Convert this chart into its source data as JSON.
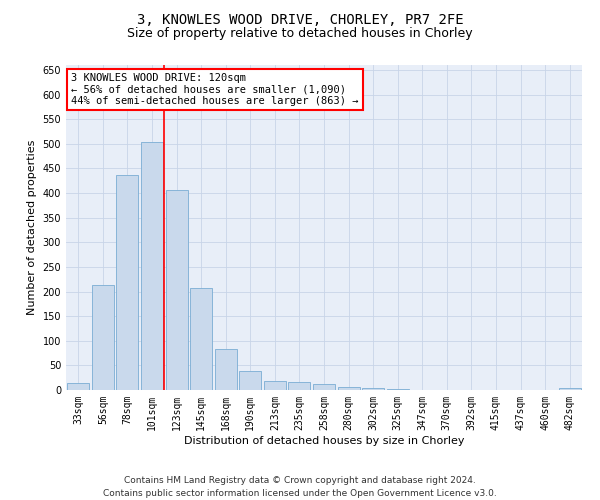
{
  "title": "3, KNOWLES WOOD DRIVE, CHORLEY, PR7 2FE",
  "subtitle": "Size of property relative to detached houses in Chorley",
  "xlabel": "Distribution of detached houses by size in Chorley",
  "ylabel": "Number of detached properties",
  "categories": [
    "33sqm",
    "56sqm",
    "78sqm",
    "101sqm",
    "123sqm",
    "145sqm",
    "168sqm",
    "190sqm",
    "213sqm",
    "235sqm",
    "258sqm",
    "280sqm",
    "302sqm",
    "325sqm",
    "347sqm",
    "370sqm",
    "392sqm",
    "415sqm",
    "437sqm",
    "460sqm",
    "482sqm"
  ],
  "values": [
    15,
    213,
    436,
    503,
    407,
    207,
    84,
    38,
    18,
    16,
    12,
    6,
    4,
    2,
    1,
    1,
    1,
    1,
    0,
    0,
    4
  ],
  "bar_color": "#c9d9ec",
  "bar_edge_color": "#7aadd4",
  "vline_x": 3.5,
  "annotation_text": "3 KNOWLES WOOD DRIVE: 120sqm\n← 56% of detached houses are smaller (1,090)\n44% of semi-detached houses are larger (863) →",
  "annotation_box_color": "white",
  "annotation_box_edge_color": "red",
  "vline_color": "red",
  "ylim": [
    0,
    660
  ],
  "yticks": [
    0,
    50,
    100,
    150,
    200,
    250,
    300,
    350,
    400,
    450,
    500,
    550,
    600,
    650
  ],
  "grid_color": "#c8d4e8",
  "background_color": "#e8eef8",
  "footer_text": "Contains HM Land Registry data © Crown copyright and database right 2024.\nContains public sector information licensed under the Open Government Licence v3.0.",
  "title_fontsize": 10,
  "subtitle_fontsize": 9,
  "axis_label_fontsize": 8,
  "tick_fontsize": 7,
  "annotation_fontsize": 7.5,
  "footer_fontsize": 6.5
}
